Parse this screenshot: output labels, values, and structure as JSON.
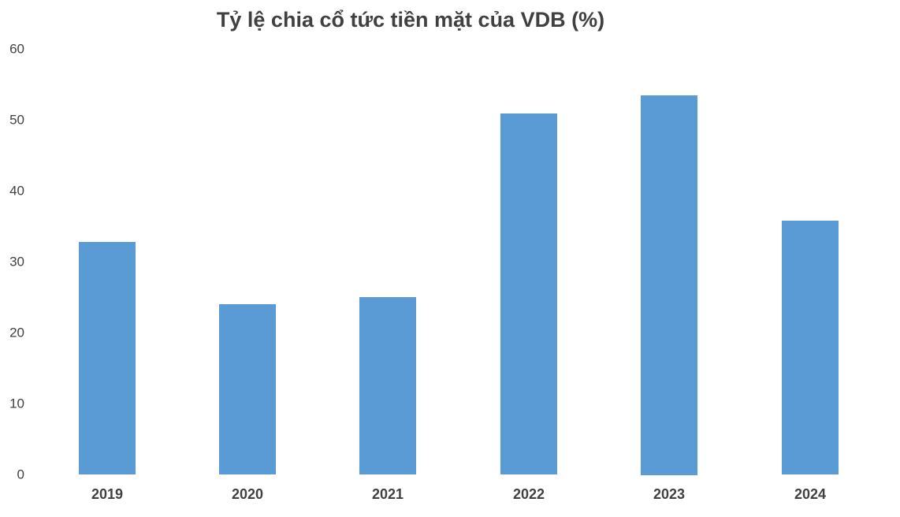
{
  "chart_data": {
    "type": "bar",
    "title": "Tỷ lệ chia cổ tức tiền mặt của VDB (%)",
    "categories": [
      "2019",
      "2020",
      "2021",
      "2022",
      "2023",
      "2024"
    ],
    "values": [
      32.8,
      24,
      25,
      50.9,
      53.5,
      35.8
    ],
    "xlabel": "",
    "ylabel": "",
    "ylim": [
      0,
      60
    ],
    "yticks": [
      0,
      10,
      20,
      30,
      40,
      50,
      60
    ],
    "grid": false,
    "legend_position": "none",
    "bar_color": "#5B9BD5",
    "title_color": "#404040",
    "axis_text_color": "#404040",
    "background_color": "#FFFFFF"
  }
}
